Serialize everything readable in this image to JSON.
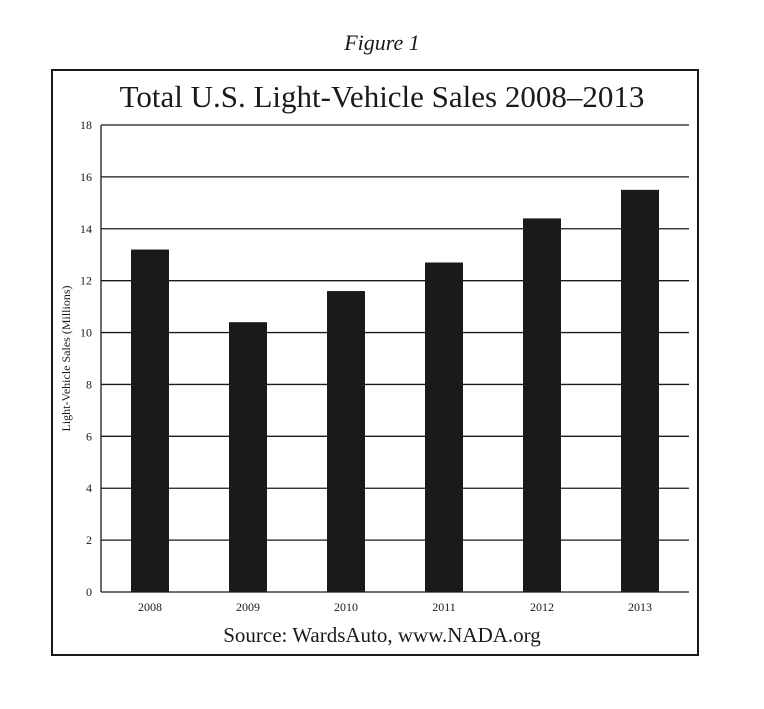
{
  "figure_label": "Figure 1",
  "source": "Source: WardsAuto, www.NADA.org",
  "colors": {
    "bar": "#1a1a1a",
    "grid": "#1a1a1a",
    "text": "#1a1a1a"
  },
  "chart_data": {
    "type": "bar",
    "title": "Total U.S. Light-Vehicle Sales 2008–2013",
    "xlabel": "",
    "ylabel": "Light-Vehicle Sales (Millions)",
    "categories": [
      "2008",
      "2009",
      "2010",
      "2011",
      "2012",
      "2013"
    ],
    "values": [
      13.2,
      10.4,
      11.6,
      12.7,
      14.4,
      15.5
    ],
    "ylim": [
      0,
      18
    ],
    "yticks": [
      0,
      2,
      4,
      6,
      8,
      10,
      12,
      14,
      16,
      18
    ],
    "grid": true,
    "legend": "none"
  }
}
